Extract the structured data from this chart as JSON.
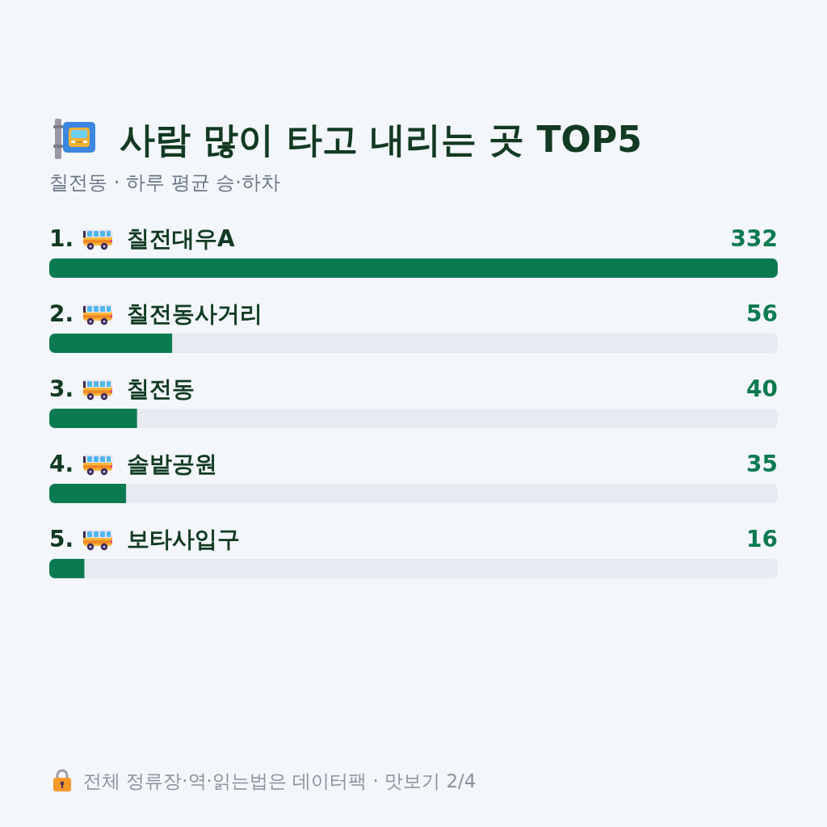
{
  "chart_data": {
    "type": "bar",
    "orientation": "horizontal",
    "title": "사람 많이 타고 내리는 곳 TOP5",
    "subtitle": "칠전동 · 하루 평균 승·하차",
    "categories": [
      "1. 칠전대우A",
      "2. 칠전동사거리",
      "3. 칠전동",
      "4. 솔밭공원",
      "5. 보타사입구"
    ],
    "values": [
      332,
      56,
      40,
      35,
      16
    ],
    "color": "#0c7a51",
    "data_labels": true,
    "annotations": [
      "전체 정류장·역·읽는법은 데이터팩 · 맛보기 2/4"
    ]
  }
}
